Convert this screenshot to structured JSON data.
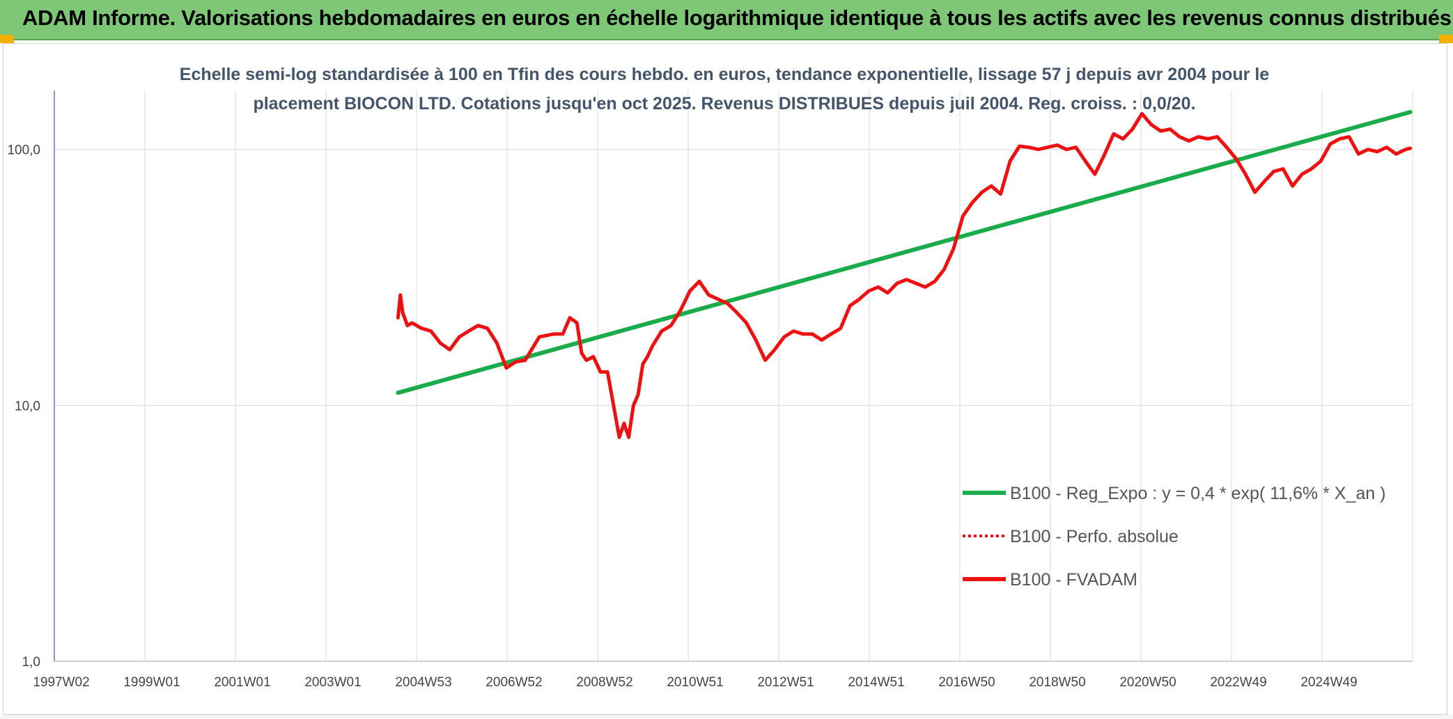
{
  "header": {
    "title": "ADAM Informe. Valorisations hebdomadaires en euros en échelle logarithmique identique à tous les actifs avec les revenus connus distribués"
  },
  "colors": {
    "banner": "#7dc777",
    "accent_corner": "#f2b100",
    "regression": "#1aab4b",
    "price": "#ee1111",
    "title_text": "#44546a",
    "grid": "#d9d9d9"
  },
  "chart_data": {
    "type": "line",
    "title_line1": "Echelle semi-log standardisée à 100 en Tfin des cours hebdo. en euros, tendance exponentielle, lissage 57 j depuis avr 2004 pour le",
    "title_line2": "placement BIOCON LTD. Cotations jusqu'en oct 2025. Revenus DISTRIBUES depuis juil 2004. Reg. croiss. : 0,0/20.",
    "y_scale": "log",
    "ylim": [
      1,
      170
    ],
    "y_ticks": [
      {
        "value": 100,
        "label": "100,0"
      },
      {
        "value": 10,
        "label": "10,0"
      },
      {
        "value": 1,
        "label": "1,0"
      }
    ],
    "x_ticks": [
      "1997W02",
      "1999W01",
      "2001W01",
      "2003W01",
      "2004W53",
      "2006W52",
      "2008W52",
      "2010W51",
      "2012W51",
      "2014W51",
      "2016W50",
      "2018W50",
      "2020W50",
      "2022W49",
      "2024W49"
    ],
    "xlim": [
      1997.0,
      2025.85
    ],
    "grid": true,
    "legend_position": "lower-right",
    "legend": [
      {
        "label": "B100 - Reg_Expo : y = 0,4 * exp( 11,6% * X_an )",
        "style": "solid",
        "color": "#1aab4b"
      },
      {
        "label": "B100 - Perfo. absolue",
        "style": "dotted",
        "color": "#ee1111"
      },
      {
        "label": "B100 - FVADAM",
        "style": "solid",
        "color": "#ee1111"
      }
    ],
    "series": [
      {
        "name": "B100 - Reg_Expo : y = 0,4 * exp( 11,6% * X_an )",
        "x": [
          2004.3,
          2025.8
        ],
        "y": [
          11.2,
          140
        ]
      },
      {
        "name": "B100 - FVADAM",
        "x": [
          2004.3,
          2004.35,
          2004.4,
          2004.5,
          2004.6,
          2004.8,
          2005.0,
          2005.2,
          2005.4,
          2005.6,
          2005.8,
          2006.0,
          2006.2,
          2006.4,
          2006.6,
          2006.8,
          2007.0,
          2007.3,
          2007.6,
          2007.8,
          2007.95,
          2008.1,
          2008.2,
          2008.3,
          2008.45,
          2008.6,
          2008.75,
          2008.9,
          2009.0,
          2009.1,
          2009.2,
          2009.3,
          2009.4,
          2009.5,
          2009.6,
          2009.7,
          2009.9,
          2010.1,
          2010.3,
          2010.5,
          2010.7,
          2010.9,
          2011.1,
          2011.3,
          2011.5,
          2011.7,
          2011.9,
          2012.1,
          2012.3,
          2012.5,
          2012.7,
          2012.9,
          2013.1,
          2013.3,
          2013.5,
          2013.7,
          2013.9,
          2014.1,
          2014.3,
          2014.5,
          2014.7,
          2014.9,
          2015.1,
          2015.3,
          2015.5,
          2015.7,
          2015.9,
          2016.1,
          2016.3,
          2016.5,
          2016.7,
          2016.9,
          2017.1,
          2017.3,
          2017.5,
          2017.7,
          2017.9,
          2018.1,
          2018.3,
          2018.5,
          2018.7,
          2018.9,
          2019.1,
          2019.3,
          2019.5,
          2019.7,
          2019.9,
          2020.1,
          2020.3,
          2020.5,
          2020.7,
          2020.9,
          2021.1,
          2021.3,
          2021.5,
          2021.7,
          2021.9,
          2022.1,
          2022.3,
          2022.5,
          2022.7,
          2022.9,
          2023.1,
          2023.3,
          2023.5,
          2023.7,
          2023.9,
          2024.1,
          2024.3,
          2024.5,
          2024.7,
          2024.9,
          2025.1,
          2025.3,
          2025.5,
          2025.7,
          2025.8
        ],
        "y": [
          22,
          27,
          23,
          20.5,
          21,
          20,
          19.5,
          17.5,
          16.5,
          18.5,
          19.5,
          20.5,
          20,
          17.5,
          14,
          14.8,
          15,
          18.5,
          19,
          19,
          22,
          21,
          16,
          15,
          15.5,
          13.5,
          13.5,
          9.5,
          7.5,
          8.5,
          7.5,
          10,
          11,
          14.5,
          15.5,
          17,
          19.5,
          20.5,
          23.5,
          28,
          30.5,
          27,
          26,
          25,
          23,
          21,
          18,
          15,
          16.5,
          18.5,
          19.5,
          19,
          19,
          18,
          19,
          20,
          24.5,
          26,
          28,
          29,
          27.5,
          30,
          31,
          30,
          29,
          30.5,
          34,
          41,
          55,
          62,
          68,
          72,
          67,
          90,
          103,
          102,
          100,
          102,
          104,
          100,
          102,
          90,
          80,
          95,
          115,
          110,
          120,
          138,
          125,
          118,
          120,
          112,
          108,
          112,
          110,
          112,
          102,
          92,
          80,
          68,
          75,
          82,
          84,
          72,
          80,
          84,
          90,
          105,
          110,
          112,
          96,
          100,
          98,
          102,
          96,
          100,
          101
        ]
      }
    ]
  }
}
